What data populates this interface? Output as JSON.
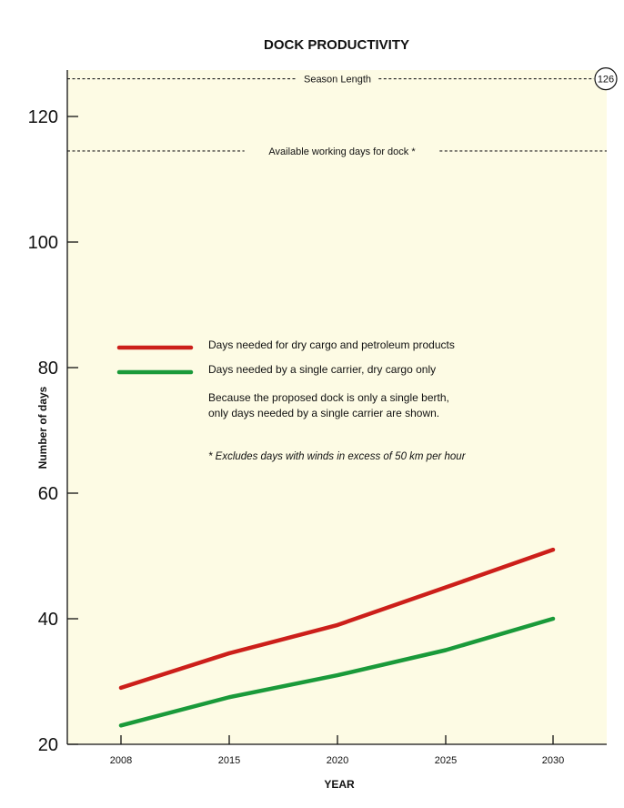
{
  "chart_data": {
    "type": "line",
    "title": "DOCK PRODUCTIVITY",
    "xlabel": "YEAR",
    "ylabel": "Number of days",
    "x": [
      2008,
      2015,
      2020,
      2025,
      2030
    ],
    "ylim": [
      20,
      126
    ],
    "yticks": [
      20,
      40,
      60,
      80,
      100,
      120
    ],
    "series": [
      {
        "name": "Days needed for dry cargo and petroleum products",
        "color": "#cc1f1a",
        "values": [
          29,
          34.5,
          39,
          45,
          51
        ]
      },
      {
        "name": "Days needed by a single carrier, dry cargo only",
        "color": "#1a9a3a",
        "values": [
          23,
          27.5,
          31,
          35,
          40
        ]
      }
    ],
    "reference_lines": [
      {
        "label": "Season Length",
        "value": 126,
        "badge": "126"
      },
      {
        "label": "Available working days for dock *",
        "value": 114.5
      }
    ],
    "notes": [
      "Because the proposed dock is only a single berth,",
      "only days needed by a single carrier are shown."
    ],
    "footnote": "* Excludes days with winds in excess of 50 km per hour",
    "background_color": "#fdfbe4",
    "grid": false,
    "legend_position": "center-left"
  }
}
